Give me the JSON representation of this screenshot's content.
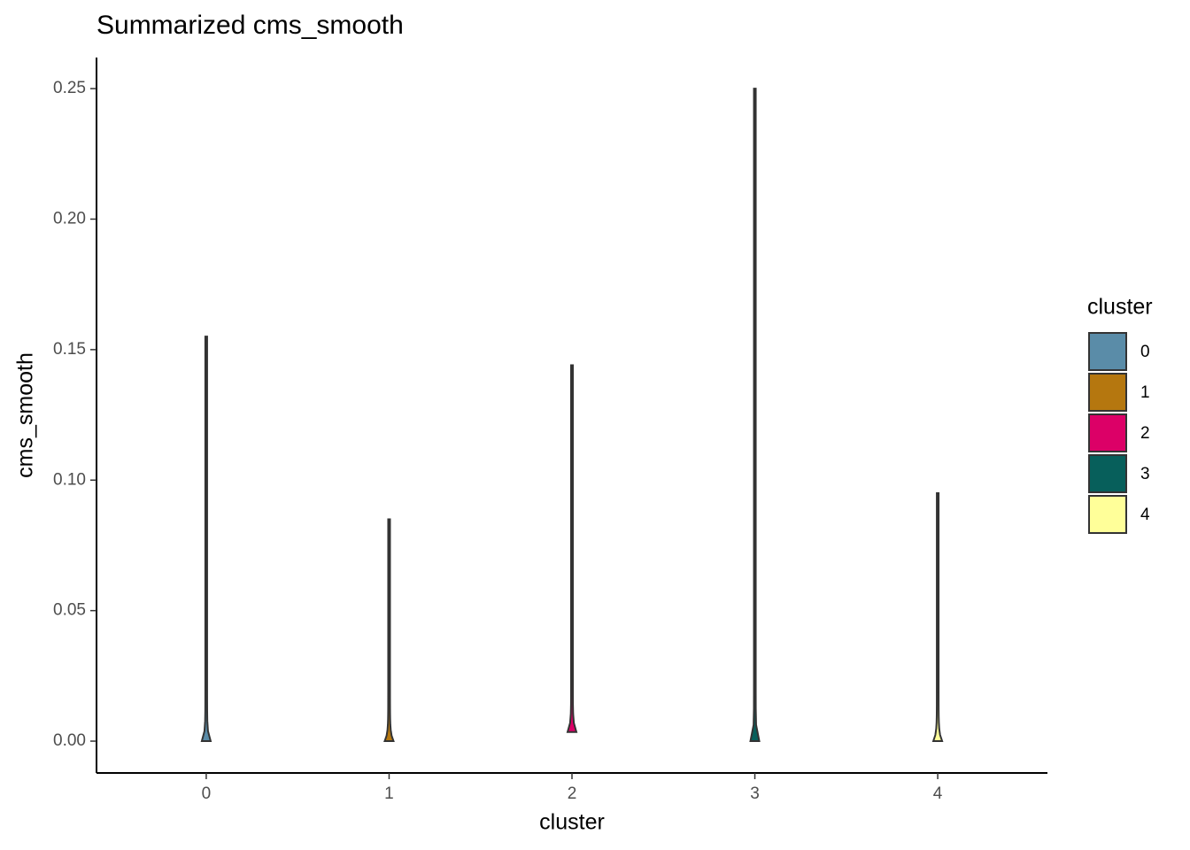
{
  "chart_data": {
    "type": "violin",
    "title": "Summarized cms_smooth",
    "x_label": "cluster",
    "y_label": "cms_smooth",
    "legend_title": "cluster",
    "categories": [
      "0",
      "1",
      "2",
      "3",
      "4"
    ],
    "series": [
      {
        "name": "0",
        "color": "#5a8ca8",
        "min": 0,
        "max": 0.155
      },
      {
        "name": "1",
        "color": "#b5770f",
        "min": 0,
        "max": 0.085
      },
      {
        "name": "2",
        "color": "#dc0067",
        "min": 0.0035,
        "max": 0.144
      },
      {
        "name": "3",
        "color": "#075f5b",
        "min": 0,
        "max": 0.25
      },
      {
        "name": "4",
        "color": "#ffff99",
        "min": 0,
        "max": 0.095
      }
    ],
    "ylim": [
      -0.0122,
      0.2619
    ],
    "yticks": [
      {
        "value": 0,
        "label": "0.00"
      },
      {
        "value": 0.05,
        "label": "0.05"
      },
      {
        "value": 0.1,
        "label": "0.10"
      },
      {
        "value": 0.15,
        "label": "0.15"
      },
      {
        "value": 0.2,
        "label": "0.20"
      },
      {
        "value": 0.25,
        "label": "0.25"
      }
    ],
    "grid": false,
    "legend": "right"
  }
}
